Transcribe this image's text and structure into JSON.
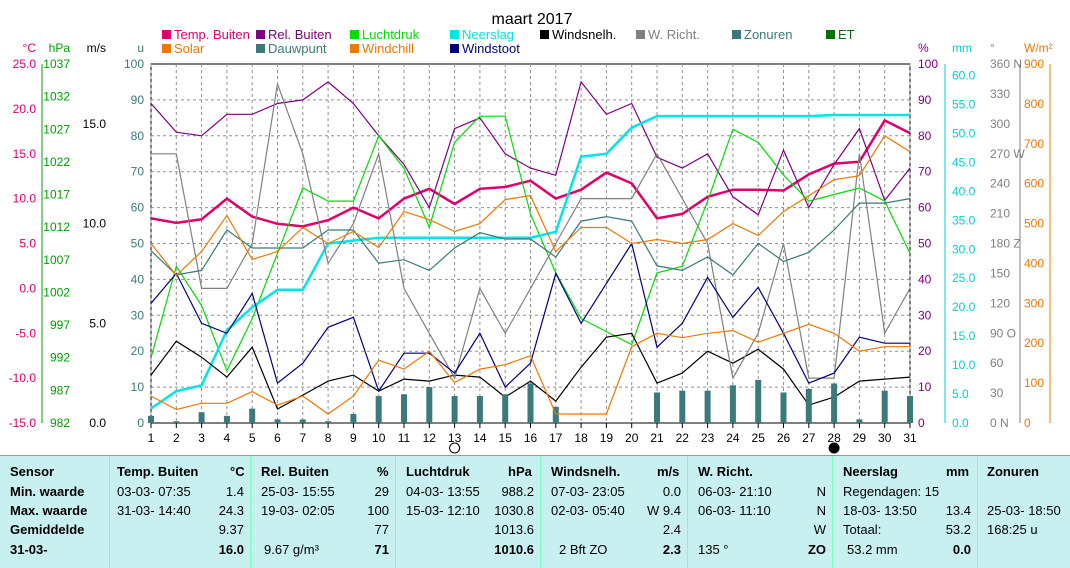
{
  "chart_data": {
    "type": "line",
    "title": "maart 2017",
    "x": [
      1,
      2,
      3,
      4,
      5,
      6,
      7,
      8,
      9,
      10,
      11,
      12,
      13,
      14,
      15,
      16,
      17,
      18,
      19,
      20,
      21,
      22,
      23,
      24,
      25,
      26,
      27,
      28,
      29,
      30,
      31
    ],
    "legend": [
      {
        "label": "Temp. Buiten",
        "color": "#e0006a"
      },
      {
        "label": "Rel. Buiten",
        "color": "#800080"
      },
      {
        "label": "Luchtdruk",
        "color": "#00dd00"
      },
      {
        "label": "Neerslag",
        "color": "#00e5e5"
      },
      {
        "label": "Windsnelh.",
        "color": "#000000"
      },
      {
        "label": "W. Richt.",
        "color": "#808080"
      },
      {
        "label": "Zonuren",
        "color": "#3a7a7a"
      },
      {
        "label": "ET",
        "color": "#007000"
      },
      {
        "label": "Solar",
        "color": "#f07800"
      },
      {
        "label": "Dauwpunt",
        "color": "#3a7a7a"
      },
      {
        "label": "Windchill",
        "color": "#f07800"
      },
      {
        "label": "Windstoot",
        "color": "#000080"
      }
    ],
    "axes": {
      "temp": {
        "label": "°C",
        "ticks": [
          "25.0",
          "20.0",
          "15.0",
          "10.0",
          "5.0",
          "0.0",
          "-5.0",
          "-10.0",
          "-15.0"
        ],
        "range": [
          -15,
          25
        ],
        "color": "#e0006a"
      },
      "pressure": {
        "label": "hPa",
        "ticks": [
          "1037",
          "1032",
          "1027",
          "1022",
          "1017",
          "1012",
          "1007",
          "1002",
          "997",
          "992",
          "987",
          "982"
        ],
        "range": [
          982,
          1037
        ],
        "color": "#00a000"
      },
      "wind": {
        "label": "m/s",
        "ticks": [
          "15.0",
          "10.0",
          "5.0",
          "0.0"
        ],
        "range": [
          0,
          18
        ],
        "color": "#000000"
      },
      "u": {
        "label": "u",
        "ticks": [
          "100",
          "90",
          "80",
          "70",
          "60",
          "50",
          "40",
          "30",
          "20",
          "10",
          "0"
        ],
        "range": [
          0,
          100
        ],
        "color": "#3a7a7a"
      },
      "humidity": {
        "label": "%",
        "ticks": [
          "100",
          "90",
          "80",
          "70",
          "60",
          "50",
          "40",
          "30",
          "20",
          "10",
          "0"
        ],
        "range": [
          0,
          100
        ],
        "color": "#800080"
      },
      "rain": {
        "label": "mm",
        "ticks": [
          "60.0",
          "55.0",
          "50.0",
          "45.0",
          "40.0",
          "35.0",
          "30.0",
          "25.0",
          "20.0",
          "15.0",
          "10.0",
          "5.0",
          "0.0"
        ],
        "range": [
          0,
          62
        ],
        "color": "#00d0d0"
      },
      "direction": {
        "label": "°",
        "ticks": [
          "360 N",
          "330",
          "300",
          "270 W",
          "240",
          "210",
          "180 Z",
          "150",
          "120",
          "90  O",
          "60",
          "30",
          "0  N"
        ],
        "range": [
          0,
          360
        ],
        "color": "#808080"
      },
      "solar": {
        "label": "W/m²",
        "ticks": [
          "900",
          "800",
          "700",
          "600",
          "500",
          "400",
          "300",
          "200",
          "100",
          "0"
        ],
        "range": [
          0,
          900
        ],
        "color": "#f07800"
      }
    },
    "moon_markers": [
      {
        "day": 13,
        "phase": "full"
      },
      {
        "day": 28,
        "phase": "new"
      }
    ],
    "series": [
      {
        "name": "Temp. Buiten",
        "axis": "temp",
        "color": "#e0006a",
        "values": [
          7.8,
          7.3,
          7.7,
          10.0,
          8.0,
          7.2,
          6.9,
          7.6,
          9.0,
          7.8,
          10.0,
          11.1,
          9.4,
          11.1,
          11.3,
          12.0,
          10.0,
          11.0,
          12.9,
          11.7,
          7.8,
          8.3,
          10.2,
          11.0,
          11.0,
          10.9,
          12.7,
          13.9,
          14.1,
          18.7,
          17.3
        ]
      },
      {
        "name": "Rel. Buiten",
        "axis": "humidity",
        "color": "#800080",
        "values": [
          89,
          81,
          80,
          86,
          86,
          89,
          90,
          95,
          89,
          80,
          72,
          60,
          82,
          85,
          75,
          71,
          69,
          95,
          86,
          89,
          74,
          71,
          75,
          63,
          58,
          76,
          60,
          72,
          82,
          62,
          71
        ]
      },
      {
        "name": "Luchtdruk",
        "axis": "pressure",
        "color": "#00dd00",
        "values": [
          992,
          1006,
          1000,
          990,
          998,
          1008,
          1018,
          1016,
          1016,
          1026,
          1021,
          1012,
          1025,
          1029,
          1029,
          1014,
          1005,
          998,
          996,
          994,
          1005,
          1006,
          1016,
          1027,
          1025,
          1020,
          1016,
          1017,
          1018,
          1016,
          1008
        ]
      },
      {
        "name": "Neerslag",
        "axis": "rain",
        "color": "#00e5e5",
        "values": [
          2.5,
          5.5,
          6.5,
          16,
          20,
          23,
          23,
          31,
          31.5,
          32,
          32,
          32,
          32,
          32,
          32,
          32,
          33,
          46,
          46.5,
          51,
          53,
          53,
          53,
          53,
          53,
          53,
          53,
          53.2,
          53.2,
          53.2,
          53.2
        ]
      },
      {
        "name": "Windsnelh.",
        "axis": "wind",
        "color": "#000000",
        "values": [
          2.4,
          4.1,
          3.3,
          2.3,
          3.8,
          0.7,
          1.4,
          2.1,
          2.4,
          1.6,
          2.2,
          2.1,
          2.4,
          2.3,
          1.3,
          2.1,
          1.1,
          2.8,
          4.3,
          4.5,
          2.0,
          2.5,
          3.6,
          3.0,
          3.7,
          2.7,
          0.9,
          1.3,
          2.1,
          2.2,
          2.3
        ]
      },
      {
        "name": "W. Richt.",
        "axis": "direction",
        "color": "#808080",
        "values": [
          270,
          270,
          135,
          135,
          180,
          340,
          270,
          160,
          200,
          270,
          135,
          90,
          45,
          135,
          90,
          135,
          180,
          225,
          225,
          225,
          270,
          225,
          180,
          45,
          90,
          180,
          45,
          45,
          270,
          90,
          135
        ]
      },
      {
        "name": "Zonuren",
        "axis": "u",
        "color": "#3a7a7a",
        "style": "bars",
        "values": [
          2.0,
          0.5,
          3.0,
          2.0,
          4.0,
          1.0,
          1.0,
          0.5,
          2.5,
          7.5,
          8.0,
          10.0,
          7.5,
          7.5,
          8.0,
          11.0,
          4.5,
          0.0,
          0.0,
          0.0,
          8.5,
          9.0,
          9.0,
          10.5,
          12.0,
          8.5,
          9.5,
          11.0,
          1.0,
          9.0,
          7.5
        ]
      },
      {
        "name": "Windstoot",
        "axis": "wind",
        "color": "#000080",
        "values": [
          6.0,
          7.5,
          5.0,
          4.5,
          6.5,
          2.0,
          3.0,
          4.8,
          5.3,
          1.6,
          3.5,
          3.5,
          2.5,
          4.5,
          1.8,
          3.0,
          7.5,
          5.0,
          7.0,
          9.0,
          3.8,
          5.0,
          7.3,
          5.3,
          6.8,
          4.5,
          2.0,
          2.5,
          4.3,
          4.0,
          4.0
        ]
      },
      {
        "name": "Dauwpunt",
        "axis": "temp",
        "color": "#3a7a7a",
        "values": [
          4.2,
          1.5,
          2.0,
          6.5,
          4.5,
          4.5,
          4.5,
          6.5,
          6.5,
          2.8,
          3.2,
          2.0,
          4.5,
          6.2,
          5.5,
          5.5,
          3.5,
          7.5,
          8.0,
          7.5,
          2.5,
          2.0,
          3.5,
          1.5,
          5.0,
          3.0,
          4.0,
          6.5,
          9.5,
          9.5,
          10.0
        ]
      },
      {
        "name": "Solar",
        "axis": "solar",
        "color": "#f07800",
        "values": [
          450,
          370,
          430,
          520,
          410,
          430,
          490,
          450,
          480,
          440,
          530,
          510,
          480,
          500,
          560,
          570,
          430,
          490,
          490,
          450,
          460,
          450,
          460,
          500,
          470,
          530,
          570,
          610,
          620,
          720,
          680
        ]
      },
      {
        "name": "Windchill",
        "axis": "temp",
        "color": "#f07800",
        "values": [
          -12,
          -13.5,
          -12.8,
          -12.8,
          -11.5,
          -13,
          -12,
          -14,
          -12,
          -8,
          -9,
          -7,
          -10.5,
          -9,
          -8.5,
          -7.5,
          -14,
          -14,
          -14,
          -6.5,
          -5,
          -5.5,
          -5,
          -4.7,
          -6,
          -5,
          -4,
          -5,
          -7,
          -6.5,
          -6.5
        ]
      }
    ]
  },
  "stats": {
    "rows": [
      "Sensor",
      "Min. waarde",
      "Max. waarde",
      "Gemiddelde",
      "31-03-"
    ],
    "temp": {
      "head": "Temp. Buiten",
      "unit": "°C",
      "min_time": "03-03- 07:35",
      "min": "1.4",
      "max_time": "31-03- 14:40",
      "max": "24.3",
      "avg": "9.37",
      "cur": "16.0"
    },
    "hum": {
      "head": "Rel. Buiten",
      "unit": "%",
      "min_time": "25-03- 15:55",
      "min": "29",
      "max_time": "19-03- 02:05",
      "max": "100",
      "avg": "77",
      "cur_note": "9.67 g/m³",
      "cur": "71"
    },
    "press": {
      "head": "Luchtdruk",
      "unit": "hPa",
      "min_time": "04-03- 13:55",
      "min": "988.2",
      "max_time": "15-03- 12:10",
      "max": "1030.8",
      "avg": "1013.6",
      "cur": "1010.6"
    },
    "wind": {
      "head": "Windsnelh.",
      "unit": "m/s",
      "min_time": "07-03- 23:05",
      "min": "0.0",
      "max_time": "02-03- 05:40",
      "max": "W 9.4",
      "avg": "2.4",
      "cur_note": "2 Bft ZO",
      "cur": "2.3"
    },
    "dir": {
      "head": "W. Richt.",
      "min_time": "06-03- 21:10",
      "min": "N",
      "max_time": "06-03- 11:10",
      "max": "N",
      "avg": "W",
      "cur_note": "135 °",
      "cur": "ZO"
    },
    "rain": {
      "head": "Neerslag",
      "unit": "mm",
      "days": "Regendagen: 15",
      "max_time": "18-03- 13:50",
      "max": "13.4",
      "total_label": "Totaal:",
      "total": "53.2",
      "cur_note": "53.2 mm",
      "cur": "0.0"
    },
    "sun": {
      "head": "Zonuren",
      "max_time": "25-03- 18:50",
      "avg": "168:25 u"
    }
  }
}
